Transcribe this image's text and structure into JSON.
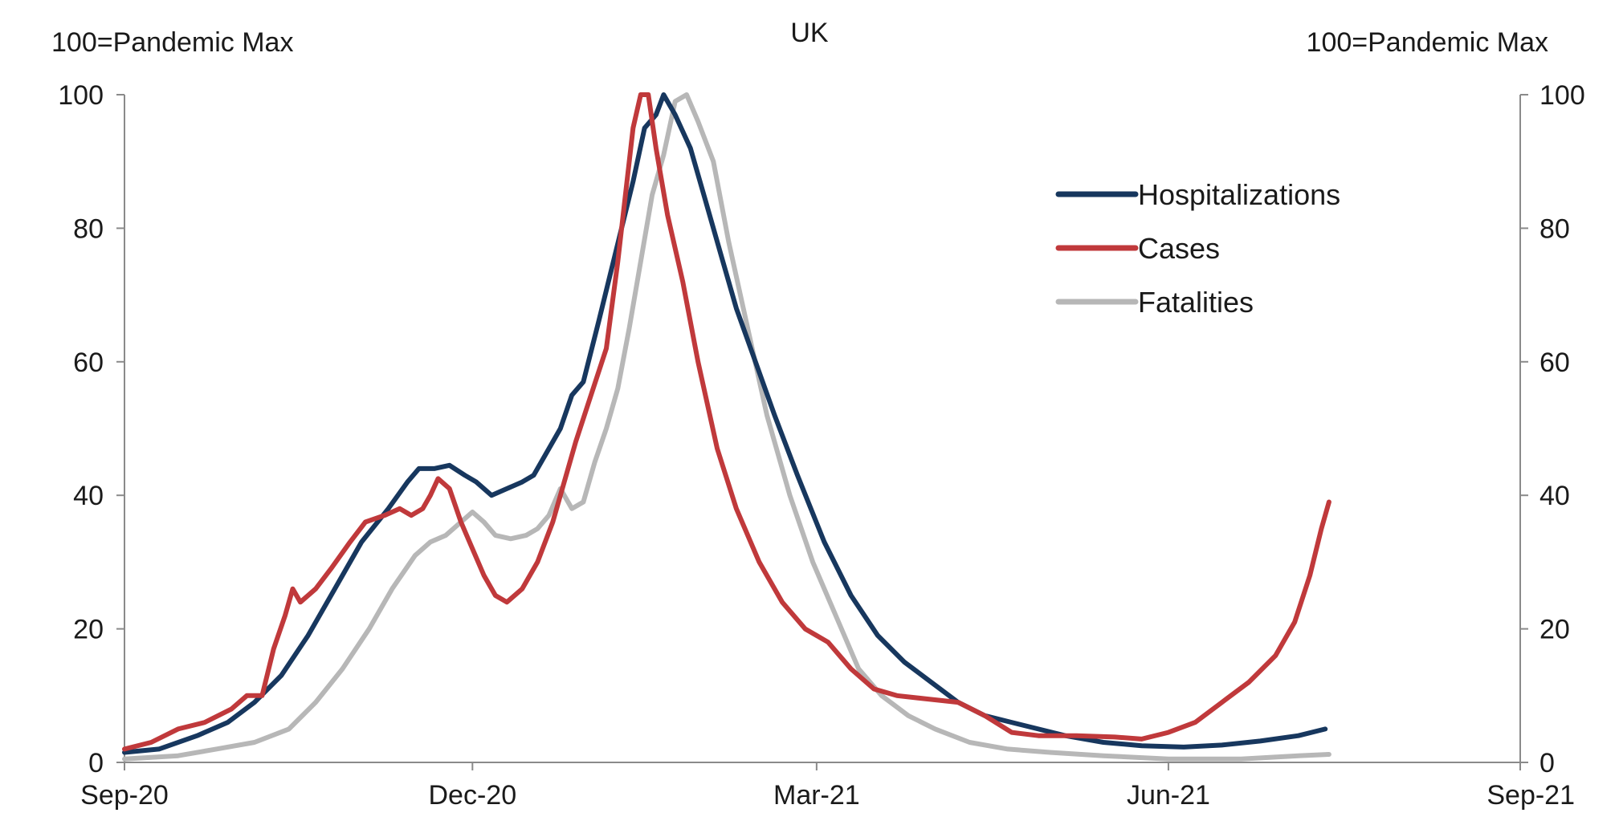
{
  "chart_data": {
    "type": "line",
    "title": "UK",
    "ylabel_left": "100=Pandemic Max",
    "ylabel_right": "100=Pandemic Max",
    "ylim": [
      0,
      100
    ],
    "yticks": [
      "0",
      "20",
      "40",
      "60",
      "80",
      "100"
    ],
    "xlim": [
      "2020-09-01",
      "2021-09-01"
    ],
    "xticks": [
      {
        "date": "2020-09-01",
        "label": "Sep-20"
      },
      {
        "date": "2020-12-01",
        "label": "Dec-20"
      },
      {
        "date": "2021-03-01",
        "label": "Mar-21"
      },
      {
        "date": "2021-06-01",
        "label": "Jun-21"
      },
      {
        "date": "2021-09-01",
        "label": "Sep-21"
      }
    ],
    "grid": false,
    "legend_position": "top-right",
    "series": [
      {
        "name": "Hospitalizations",
        "color": "#17375e",
        "points": [
          [
            "2020-09-01",
            1.5
          ],
          [
            "2020-09-10",
            2
          ],
          [
            "2020-09-20",
            4
          ],
          [
            "2020-09-28",
            6
          ],
          [
            "2020-10-05",
            9
          ],
          [
            "2020-10-12",
            13
          ],
          [
            "2020-10-19",
            19
          ],
          [
            "2020-10-26",
            26
          ],
          [
            "2020-11-02",
            33
          ],
          [
            "2020-11-09",
            38
          ],
          [
            "2020-11-14",
            42
          ],
          [
            "2020-11-17",
            44
          ],
          [
            "2020-11-21",
            44
          ],
          [
            "2020-11-25",
            44.5
          ],
          [
            "2020-11-29",
            43
          ],
          [
            "2020-12-02",
            42
          ],
          [
            "2020-12-06",
            40
          ],
          [
            "2020-12-10",
            41
          ],
          [
            "2020-12-14",
            42
          ],
          [
            "2020-12-17",
            43
          ],
          [
            "2020-12-20",
            46
          ],
          [
            "2020-12-24",
            50
          ],
          [
            "2020-12-27",
            55
          ],
          [
            "2020-12-30",
            57
          ],
          [
            "2021-01-03",
            66
          ],
          [
            "2021-01-06",
            73
          ],
          [
            "2021-01-09",
            80
          ],
          [
            "2021-01-12",
            87
          ],
          [
            "2021-01-15",
            95
          ],
          [
            "2021-01-18",
            97
          ],
          [
            "2021-01-20",
            100
          ],
          [
            "2021-01-23",
            97
          ],
          [
            "2021-01-27",
            92
          ],
          [
            "2021-01-31",
            84
          ],
          [
            "2021-02-04",
            76
          ],
          [
            "2021-02-08",
            68
          ],
          [
            "2021-02-13",
            60
          ],
          [
            "2021-02-18",
            52
          ],
          [
            "2021-02-24",
            43
          ],
          [
            "2021-03-03",
            33
          ],
          [
            "2021-03-10",
            25
          ],
          [
            "2021-03-17",
            19
          ],
          [
            "2021-03-24",
            15
          ],
          [
            "2021-03-31",
            12
          ],
          [
            "2021-04-07",
            9
          ],
          [
            "2021-04-14",
            7
          ],
          [
            "2021-04-21",
            6
          ],
          [
            "2021-04-28",
            5
          ],
          [
            "2021-05-05",
            4
          ],
          [
            "2021-05-15",
            3
          ],
          [
            "2021-05-25",
            2.5
          ],
          [
            "2021-06-05",
            2.3
          ],
          [
            "2021-06-15",
            2.6
          ],
          [
            "2021-06-25",
            3.2
          ],
          [
            "2021-07-05",
            4
          ],
          [
            "2021-07-12",
            5
          ]
        ]
      },
      {
        "name": "Cases",
        "color": "#c0393b",
        "points": [
          [
            "2020-09-01",
            2
          ],
          [
            "2020-09-08",
            3
          ],
          [
            "2020-09-15",
            5
          ],
          [
            "2020-09-22",
            6
          ],
          [
            "2020-09-29",
            8
          ],
          [
            "2020-10-03",
            10
          ],
          [
            "2020-10-07",
            10
          ],
          [
            "2020-10-10",
            17
          ],
          [
            "2020-10-13",
            22
          ],
          [
            "2020-10-15",
            26
          ],
          [
            "2020-10-17",
            24
          ],
          [
            "2020-10-21",
            26
          ],
          [
            "2020-10-25",
            29
          ],
          [
            "2020-10-30",
            33
          ],
          [
            "2020-11-03",
            36
          ],
          [
            "2020-11-08",
            37
          ],
          [
            "2020-11-12",
            38
          ],
          [
            "2020-11-15",
            37
          ],
          [
            "2020-11-18",
            38
          ],
          [
            "2020-11-20",
            40
          ],
          [
            "2020-11-22",
            42.5
          ],
          [
            "2020-11-25",
            41
          ],
          [
            "2020-11-28",
            36
          ],
          [
            "2020-12-01",
            32
          ],
          [
            "2020-12-04",
            28
          ],
          [
            "2020-12-07",
            25
          ],
          [
            "2020-12-10",
            24
          ],
          [
            "2020-12-14",
            26
          ],
          [
            "2020-12-18",
            30
          ],
          [
            "2020-12-22",
            36
          ],
          [
            "2020-12-25",
            42
          ],
          [
            "2020-12-28",
            48
          ],
          [
            "2021-01-01",
            55
          ],
          [
            "2021-01-05",
            62
          ],
          [
            "2021-01-08",
            75
          ],
          [
            "2021-01-10",
            85
          ],
          [
            "2021-01-12",
            95
          ],
          [
            "2021-01-14",
            100
          ],
          [
            "2021-01-16",
            100
          ],
          [
            "2021-01-18",
            92
          ],
          [
            "2021-01-21",
            82
          ],
          [
            "2021-01-25",
            72
          ],
          [
            "2021-01-29",
            60
          ],
          [
            "2021-02-03",
            47
          ],
          [
            "2021-02-08",
            38
          ],
          [
            "2021-02-14",
            30
          ],
          [
            "2021-02-20",
            24
          ],
          [
            "2021-02-26",
            20
          ],
          [
            "2021-03-04",
            18
          ],
          [
            "2021-03-10",
            14
          ],
          [
            "2021-03-16",
            11
          ],
          [
            "2021-03-22",
            10
          ],
          [
            "2021-03-30",
            9.5
          ],
          [
            "2021-04-07",
            9
          ],
          [
            "2021-04-14",
            7
          ],
          [
            "2021-04-21",
            4.5
          ],
          [
            "2021-04-28",
            4
          ],
          [
            "2021-05-08",
            4
          ],
          [
            "2021-05-18",
            3.8
          ],
          [
            "2021-05-25",
            3.5
          ],
          [
            "2021-06-01",
            4.5
          ],
          [
            "2021-06-08",
            6
          ],
          [
            "2021-06-15",
            9
          ],
          [
            "2021-06-22",
            12
          ],
          [
            "2021-06-29",
            16
          ],
          [
            "2021-07-04",
            21
          ],
          [
            "2021-07-08",
            28
          ],
          [
            "2021-07-11",
            35
          ],
          [
            "2021-07-13",
            39
          ]
        ]
      },
      {
        "name": "Fatalities",
        "color": "#b7b7b7",
        "points": [
          [
            "2020-09-01",
            0.5
          ],
          [
            "2020-09-15",
            1
          ],
          [
            "2020-09-25",
            2
          ],
          [
            "2020-10-05",
            3
          ],
          [
            "2020-10-14",
            5
          ],
          [
            "2020-10-21",
            9
          ],
          [
            "2020-10-28",
            14
          ],
          [
            "2020-11-04",
            20
          ],
          [
            "2020-11-10",
            26
          ],
          [
            "2020-11-16",
            31
          ],
          [
            "2020-11-20",
            33
          ],
          [
            "2020-11-24",
            34
          ],
          [
            "2020-11-28",
            36
          ],
          [
            "2020-12-01",
            37.5
          ],
          [
            "2020-12-04",
            36
          ],
          [
            "2020-12-07",
            34
          ],
          [
            "2020-12-11",
            33.5
          ],
          [
            "2020-12-15",
            34
          ],
          [
            "2020-12-18",
            35
          ],
          [
            "2020-12-21",
            37
          ],
          [
            "2020-12-24",
            41
          ],
          [
            "2020-12-27",
            38
          ],
          [
            "2020-12-30",
            39
          ],
          [
            "2021-01-02",
            45
          ],
          [
            "2021-01-05",
            50
          ],
          [
            "2021-01-08",
            56
          ],
          [
            "2021-01-11",
            65
          ],
          [
            "2021-01-14",
            75
          ],
          [
            "2021-01-17",
            85
          ],
          [
            "2021-01-20",
            91
          ],
          [
            "2021-01-23",
            99
          ],
          [
            "2021-01-26",
            100
          ],
          [
            "2021-01-29",
            96
          ],
          [
            "2021-02-02",
            90
          ],
          [
            "2021-02-06",
            78
          ],
          [
            "2021-02-11",
            65
          ],
          [
            "2021-02-16",
            52
          ],
          [
            "2021-02-22",
            40
          ],
          [
            "2021-02-28",
            30
          ],
          [
            "2021-03-06",
            22
          ],
          [
            "2021-03-12",
            14
          ],
          [
            "2021-03-18",
            10
          ],
          [
            "2021-03-25",
            7
          ],
          [
            "2021-04-01",
            5
          ],
          [
            "2021-04-10",
            3
          ],
          [
            "2021-04-20",
            2
          ],
          [
            "2021-05-01",
            1.5
          ],
          [
            "2021-05-15",
            1
          ],
          [
            "2021-06-01",
            0.5
          ],
          [
            "2021-06-20",
            0.5
          ],
          [
            "2021-07-05",
            1
          ],
          [
            "2021-07-13",
            1.2
          ]
        ]
      }
    ]
  }
}
